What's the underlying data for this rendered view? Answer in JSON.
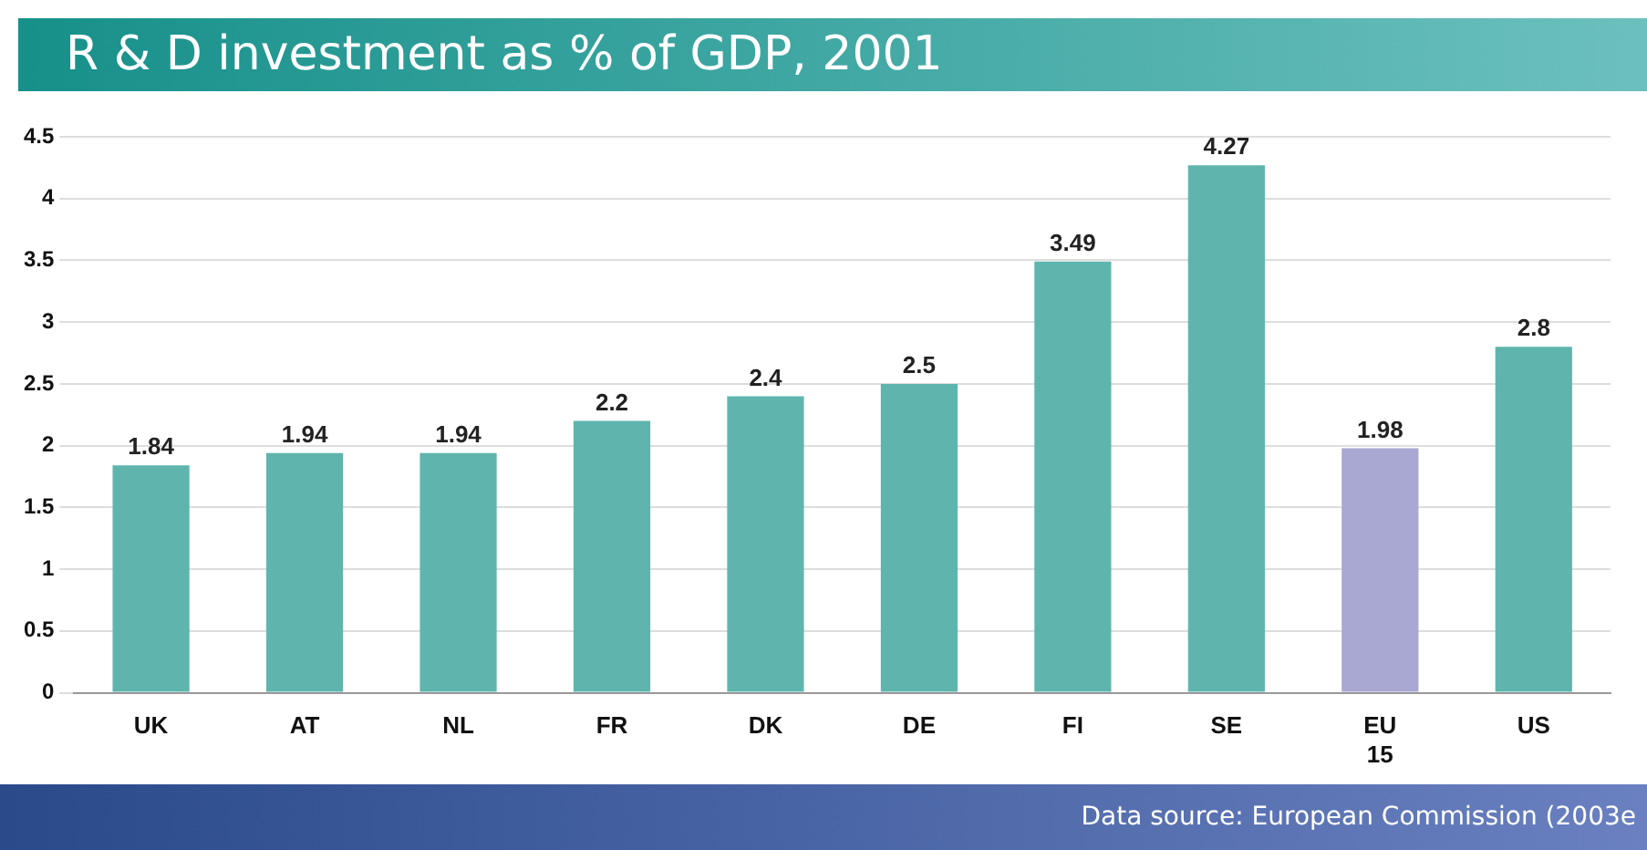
{
  "chart_data": {
    "type": "bar",
    "title": "R & D investment as % of GDP, 2001",
    "categories": [
      "UK",
      "AT",
      "NL",
      "FR",
      "DK",
      "DE",
      "FI",
      "SE",
      "EU 15",
      "US"
    ],
    "values": [
      1.84,
      1.94,
      1.94,
      2.2,
      2.4,
      2.5,
      3.49,
      4.27,
      1.98,
      2.8
    ],
    "colors": [
      "#5fb5ae",
      "#5fb5ae",
      "#5fb5ae",
      "#5fb5ae",
      "#5fb5ae",
      "#5fb5ae",
      "#5fb5ae",
      "#5fb5ae",
      "#a8a8d2",
      "#5fb5ae"
    ],
    "ylim": [
      0,
      4.5
    ],
    "yticks": [
      0,
      0.5,
      1,
      1.5,
      2,
      2.5,
      3,
      3.5,
      4,
      4.5
    ],
    "grid": "y",
    "data_labels": true,
    "annotations": [
      "Data source: European Commission (2003e"
    ]
  }
}
